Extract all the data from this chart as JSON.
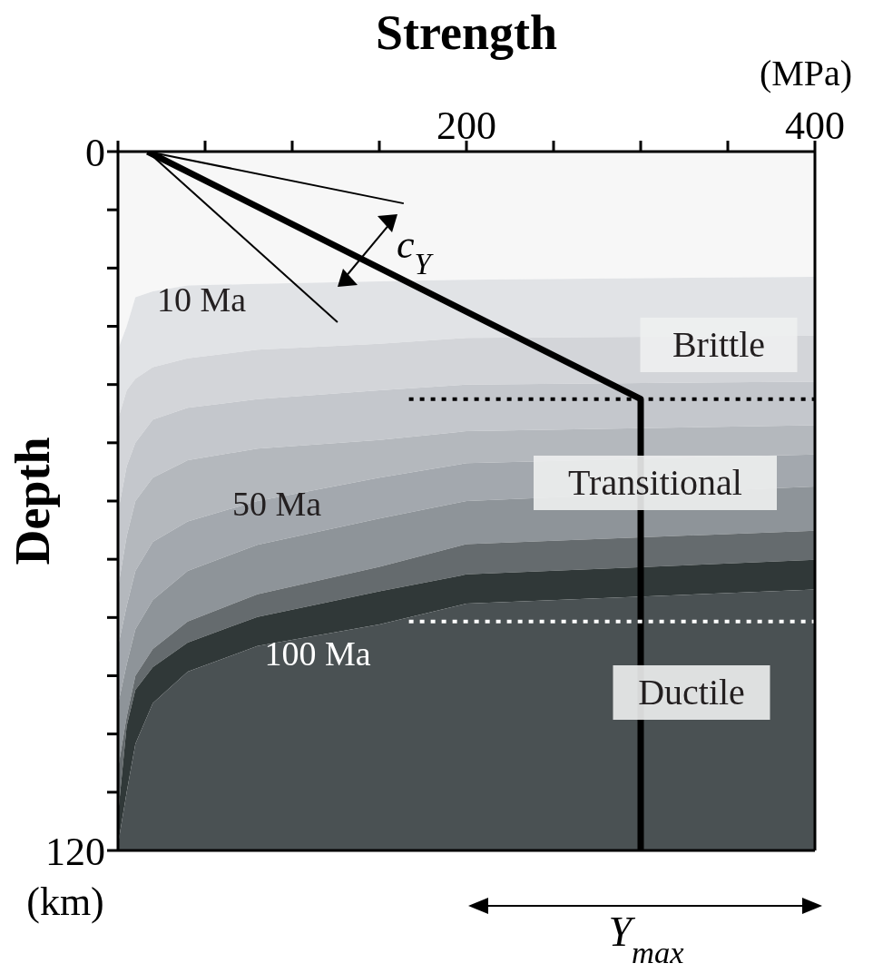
{
  "chart_data": {
    "type": "area",
    "title": "Strength",
    "ylabel": "Depth",
    "stacked": true,
    "x": [
      0,
      5,
      10,
      20,
      40,
      80,
      150,
      200,
      400
    ],
    "xlim": [
      0,
      400
    ],
    "xticks": [
      {
        "value": 0,
        "label": null
      },
      {
        "value": 50,
        "label": null
      },
      {
        "value": 100,
        "label": null
      },
      {
        "value": 150,
        "label": null
      },
      200,
      {
        "value": 250,
        "label": null
      },
      {
        "value": 300,
        "label": null
      },
      {
        "value": 350,
        "label": null
      },
      400
    ],
    "ylim": [
      120,
      0
    ],
    "yticks": [
      0,
      {
        "value": 10,
        "label": null
      },
      {
        "value": 20,
        "label": null
      },
      {
        "value": 30,
        "label": null
      },
      {
        "value": 40,
        "label": null
      },
      {
        "value": 50,
        "label": null
      },
      {
        "value": 60,
        "label": null
      },
      {
        "value": 70,
        "label": null
      },
      {
        "value": 80,
        "label": null
      },
      {
        "value": 90,
        "label": null
      },
      {
        "value": 100,
        "label": null
      },
      {
        "value": 110,
        "label": null
      },
      120
    ],
    "series": [
      {
        "color": "#f7f7f7",
        "values": [
          34,
          30,
          25,
          24,
          23,
          22.7,
          22.3,
          22,
          21.5
        ]
      },
      {
        "color": "#e1e3e6",
        "values": [
          12,
          11,
          14,
          13,
          12.5,
          11.3,
          10.7,
          10,
          10.1
        ]
      },
      {
        "color": "#d3d5d9",
        "values": [
          16,
          13,
          11,
          9,
          8.5,
          8.5,
          8,
          8,
          7.9
        ]
      },
      {
        "color": "#c4c7cc",
        "values": [
          13,
          12,
          10,
          10,
          9,
          8.5,
          8.5,
          8,
          7.5
        ]
      },
      {
        "color": "#b4b8bd",
        "values": [
          10,
          12,
          12,
          11,
          10.5,
          9,
          6.5,
          5.5,
          5
        ]
      },
      {
        "color": "#a3a8ae",
        "values": [
          10,
          10,
          10,
          10,
          8.5,
          7.5,
          7,
          6.5,
          5.5
        ]
      },
      {
        "color": "#8e9499",
        "values": [
          11,
          9,
          8,
          8.4,
          8.7,
          8.5,
          8.3,
          7.4,
          7.6
        ]
      },
      {
        "color": "#656b6e",
        "values": [
          8,
          1.6,
          2.4,
          3.1,
          3.6,
          3.9,
          4.2,
          5.2,
          5
        ]
      },
      {
        "color": "#303838",
        "values": [
          5,
          11.4,
          9.3,
          6.2,
          5,
          5,
          5.7,
          5,
          5.1
        ]
      },
      {
        "color": "#4a5153",
        "values": [
          1,
          10,
          18.3,
          25.3,
          30.7,
          35.1,
          38.8,
          42.4,
          44.8
        ]
      },
      {
        "type": "line",
        "color": "#000000",
        "x": [
          17,
          300,
          300
        ],
        "values": [
          0,
          42.5,
          120
        ],
        "line_style": "solid"
      },
      {
        "type": "line",
        "color": "#000000",
        "x": [
          17,
          164
        ],
        "values": [
          0,
          8.9
        ],
        "line_style": "solid"
      },
      {
        "type": "line",
        "color": "#000000",
        "x": [
          17,
          126
        ],
        "values": [
          0,
          29.3
        ],
        "line_style": "solid"
      },
      {
        "type": "line",
        "color": "#000000",
        "x": [
          167,
          400
        ],
        "values": [
          42.5,
          42.5
        ],
        "line_style": "dotted"
      },
      {
        "type": "line",
        "color": "#ffffff",
        "x": [
          167,
          400
        ],
        "values": [
          80.7,
          80.7
        ],
        "line_style": "dotted"
      }
    ],
    "annotations": [
      "10 Ma",
      "50 Ma",
      "100 Ma",
      "Brittle",
      "Transitional",
      "Ductile",
      "(MPa)",
      "(km)",
      "c$_{Y}$",
      "Y$_{max}$"
    ],
    "marker": "none"
  }
}
